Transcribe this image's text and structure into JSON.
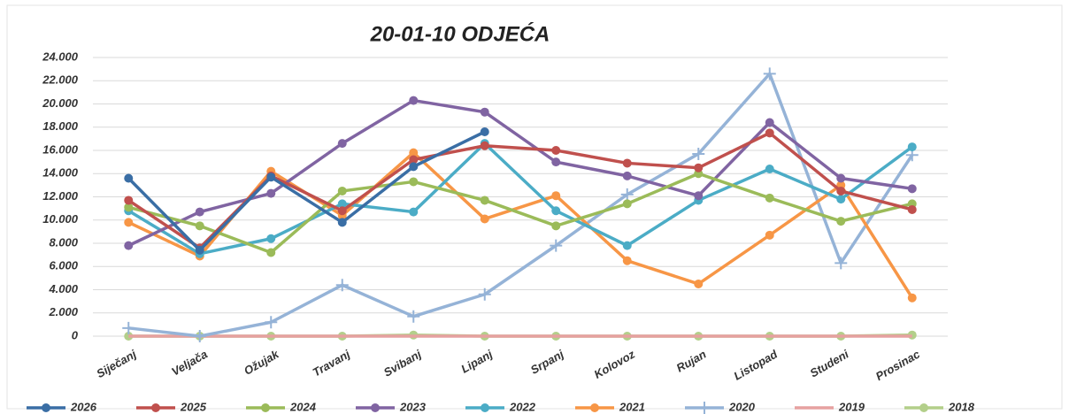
{
  "chart_data": {
    "type": "line",
    "title": "20-01-10 ODJEĆA",
    "categories": [
      "Siječanj",
      "Veljača",
      "Ožujak",
      "Travanj",
      "Svibanj",
      "Lipanj",
      "Srpanj",
      "Kolovoz",
      "Rujan",
      "Listopad",
      "Studeni",
      "Prosinac"
    ],
    "ylim": [
      0,
      24000
    ],
    "yticks": [
      0,
      {
        "value": 2000,
        "label": "2.000"
      },
      {
        "value": 4000,
        "label": "4.000"
      },
      {
        "value": 6000,
        "label": "6.000"
      },
      {
        "value": 8000,
        "label": "8.000"
      },
      {
        "value": 10000,
        "label": "10.000"
      },
      {
        "value": 12000,
        "label": "12.000"
      },
      {
        "value": 14000,
        "label": "14.000"
      },
      {
        "value": 16000,
        "label": "16.000"
      },
      {
        "value": 18000,
        "label": "18.000"
      },
      {
        "value": 20000,
        "label": "20.000"
      },
      {
        "value": 22000,
        "label": "22.000"
      },
      {
        "value": 24000,
        "label": "24.000"
      }
    ],
    "grid": true,
    "legend": "bottom",
    "series": [
      {
        "name": "2026",
        "color": "#3a6ea5",
        "marker": "circle",
        "values": [
          13600,
          7400,
          13700,
          9800,
          14600,
          17600,
          null,
          null,
          null,
          null,
          null,
          null
        ]
      },
      {
        "name": "2025",
        "color": "#c0504d",
        "marker": "circle",
        "values": [
          11700,
          7600,
          13800,
          10800,
          15200,
          16400,
          16000,
          14900,
          14500,
          17500,
          12500,
          10900
        ]
      },
      {
        "name": "2024",
        "color": "#9bbb59",
        "marker": "circle",
        "values": [
          11100,
          9500,
          7200,
          12500,
          13300,
          11700,
          9500,
          11400,
          14000,
          11900,
          9900,
          11400
        ]
      },
      {
        "name": "2023",
        "color": "#8064a2",
        "marker": "circle",
        "values": [
          7800,
          10700,
          12300,
          16600,
          20300,
          19300,
          15000,
          13800,
          12100,
          18400,
          13600,
          12700
        ]
      },
      {
        "name": "2022",
        "color": "#4bacc6",
        "marker": "circle",
        "values": [
          10800,
          7100,
          8400,
          11400,
          10700,
          16600,
          10800,
          7800,
          11700,
          14400,
          11800,
          16300
        ]
      },
      {
        "name": "2021",
        "color": "#f79646",
        "marker": "circle",
        "values": [
          9800,
          6900,
          14200,
          10400,
          15800,
          10100,
          12100,
          6500,
          4500,
          8700,
          13000,
          3300
        ]
      },
      {
        "name": "2020",
        "color": "#95b3d7",
        "marker": "plus",
        "values": [
          700,
          0,
          1200,
          4400,
          1700,
          3600,
          7800,
          12200,
          15700,
          22600,
          6300,
          15600
        ]
      },
      {
        "name": "2019",
        "color": "#e6a1a0",
        "marker": "none",
        "values": [
          0,
          0,
          0,
          0,
          0,
          0,
          0,
          0,
          0,
          0,
          0,
          0
        ]
      },
      {
        "name": "2018",
        "color": "#b3cf8a",
        "marker": "circle",
        "values": [
          0,
          0,
          0,
          0,
          100,
          0,
          0,
          0,
          0,
          0,
          0,
          100
        ]
      }
    ]
  }
}
